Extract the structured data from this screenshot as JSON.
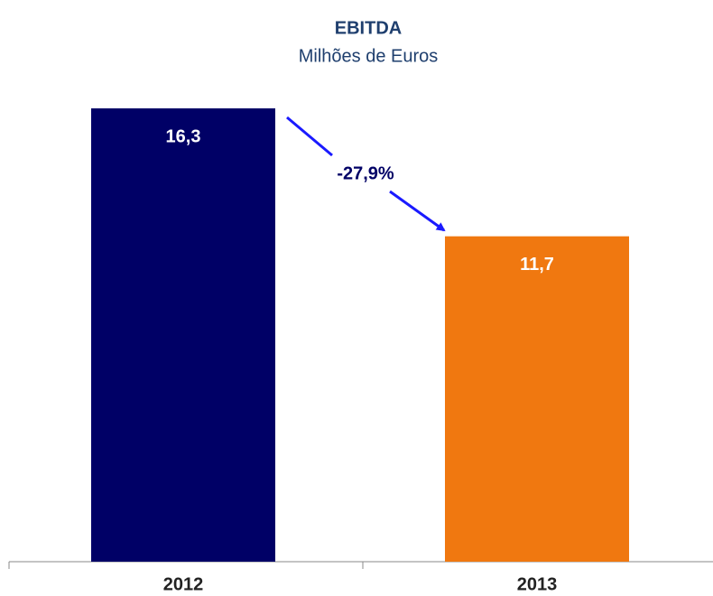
{
  "chart_data": {
    "type": "bar",
    "title": "EBITDA",
    "subtitle": "Milhões de Euros",
    "categories": [
      "2012",
      "2013"
    ],
    "values": [
      16.3,
      11.7
    ],
    "value_labels": [
      "16,3",
      "11,7"
    ],
    "colors": [
      "#000066",
      "#f07810"
    ],
    "annotation": "-27,9%"
  }
}
